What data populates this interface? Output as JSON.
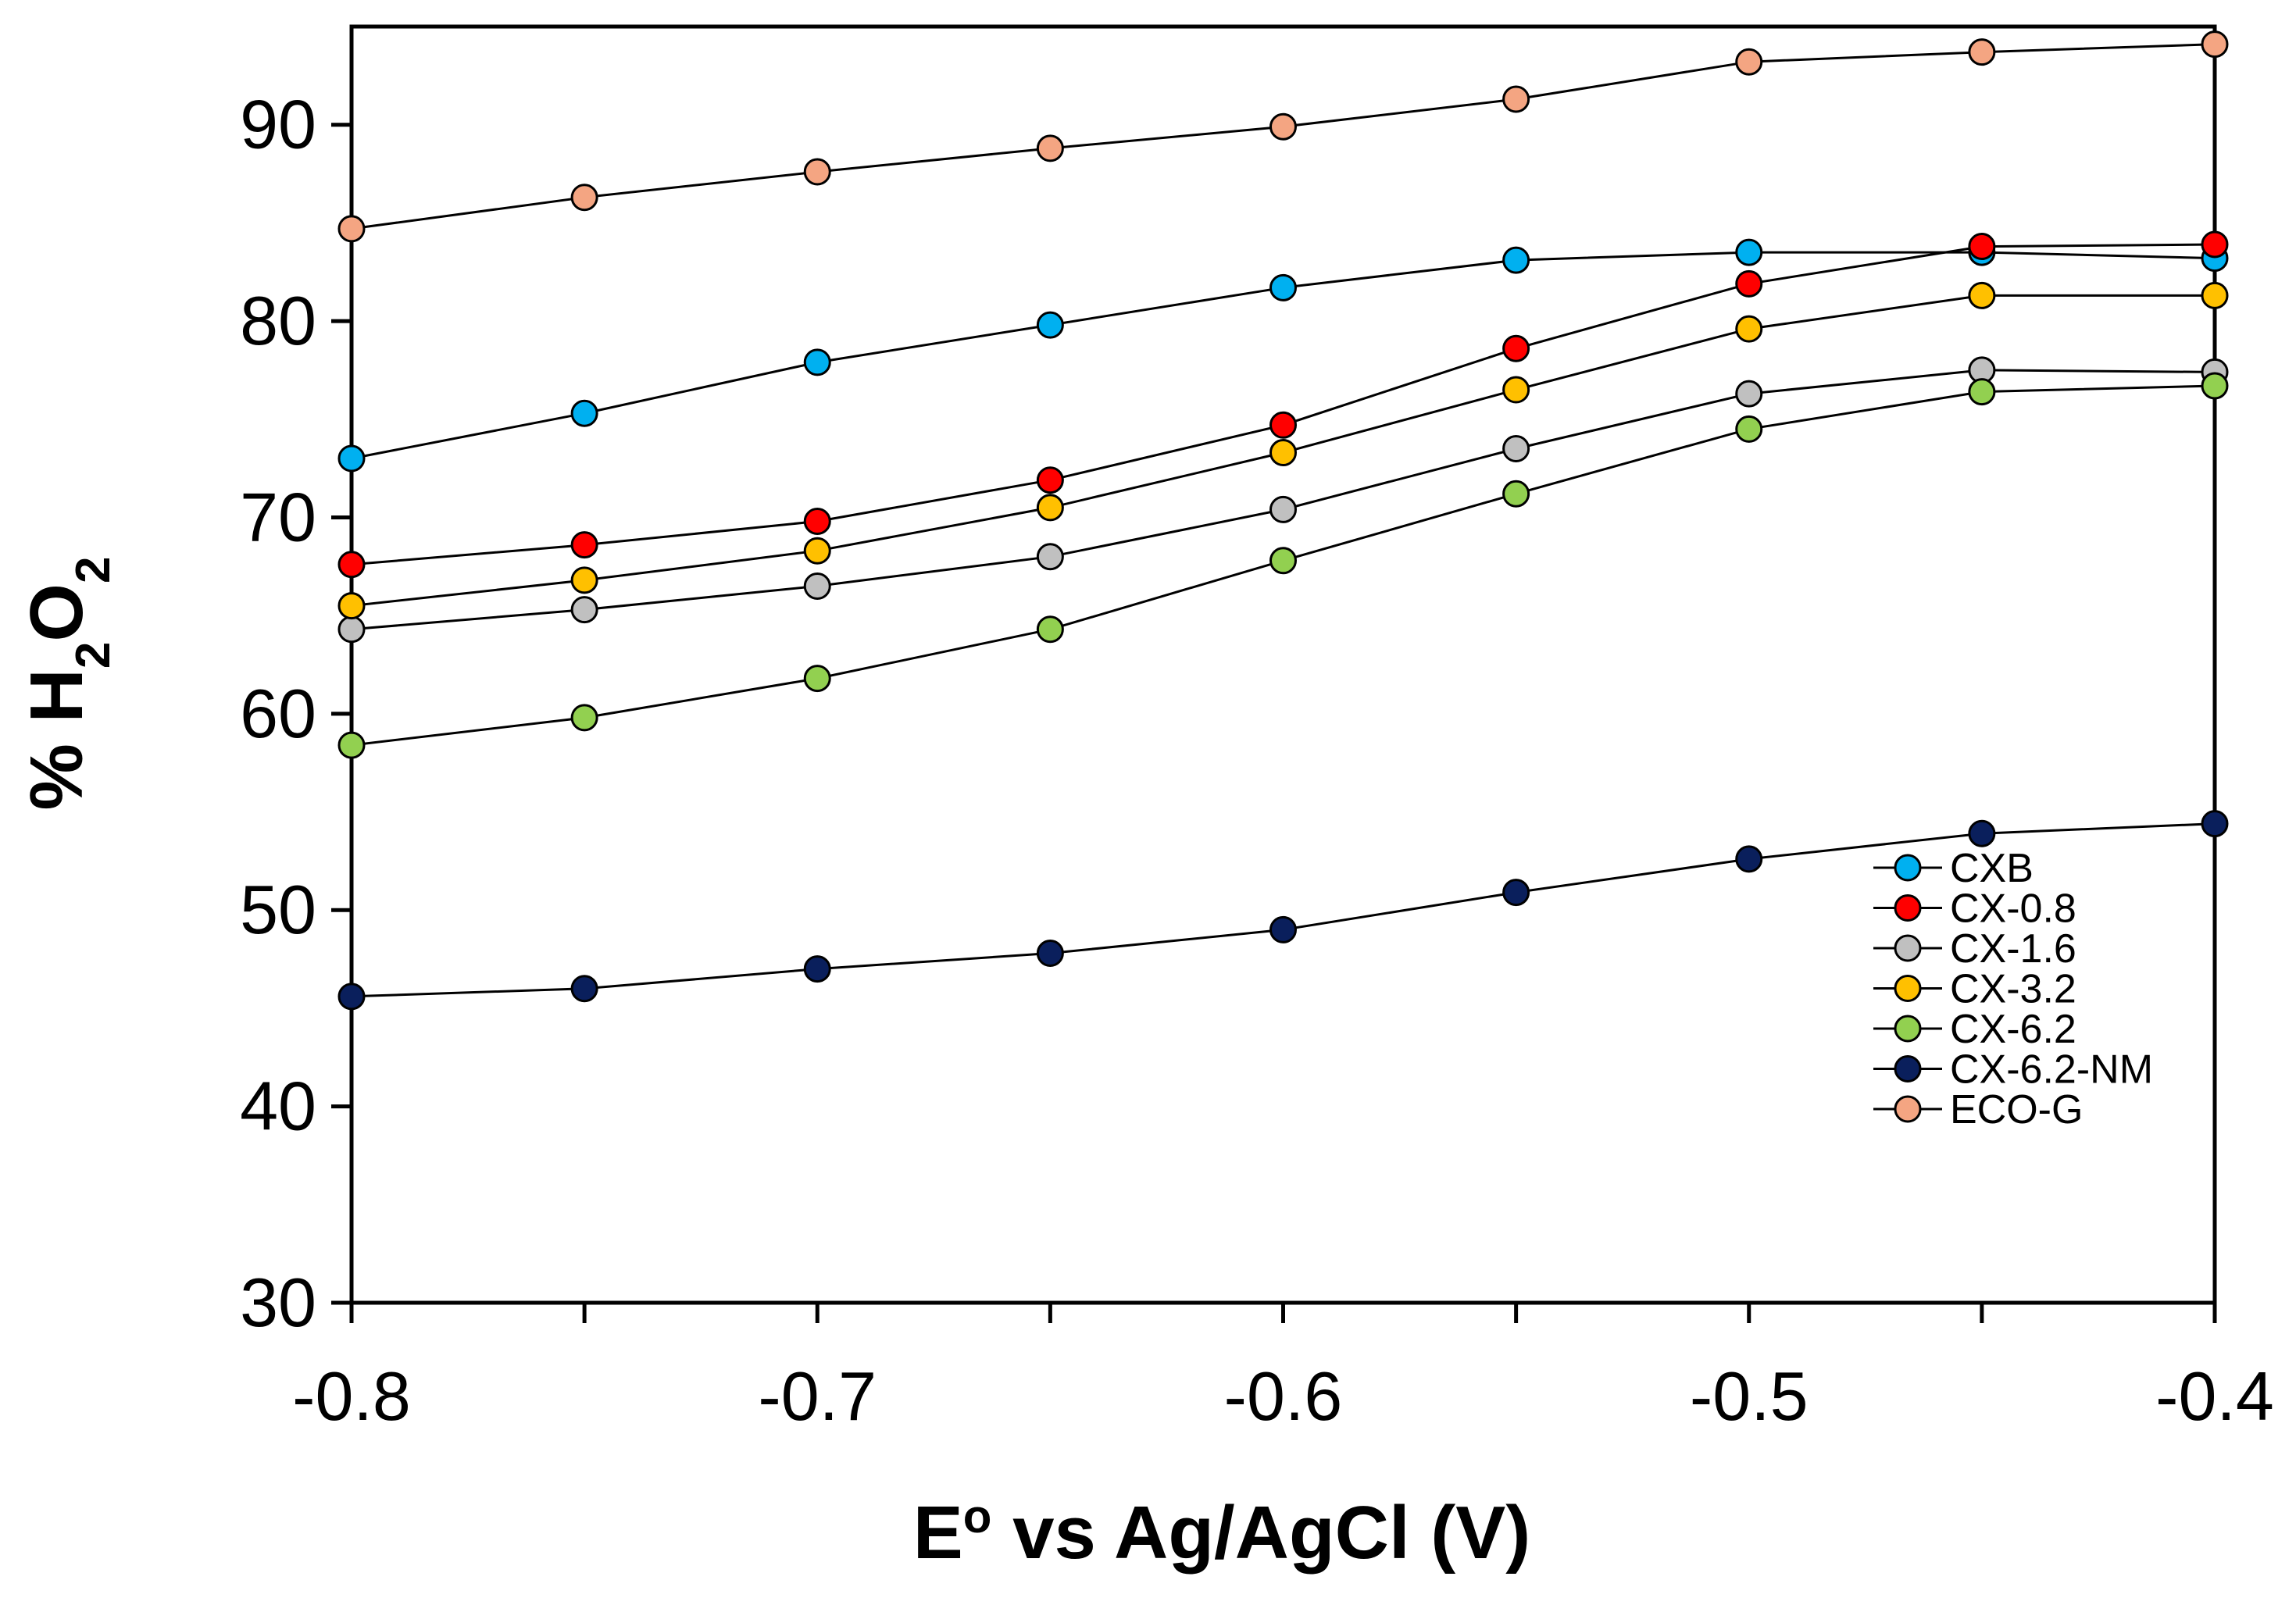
{
  "chart_data": {
    "type": "line",
    "title": "",
    "xlabel": {
      "main": "E",
      "superscript": "o",
      "rest": " vs Ag/AgCl (V)"
    },
    "ylabel": {
      "prefix": "% H",
      "sub1": "2",
      "mid": "O",
      "sub2": "2"
    },
    "xlim": [
      -0.8,
      -0.4
    ],
    "ylim": [
      30,
      95
    ],
    "xticks": [
      -0.8,
      -0.7,
      -0.6,
      -0.5,
      -0.4
    ],
    "xtick_labels": [
      "-0.8",
      "-0.7",
      "-0.6",
      "-0.5",
      "-0.4"
    ],
    "yticks": [
      30,
      40,
      50,
      60,
      70,
      80,
      90
    ],
    "ytick_labels": [
      "30",
      "40",
      "50",
      "60",
      "70",
      "80",
      "90"
    ],
    "grid": false,
    "legend_position": "bottom-right",
    "x": [
      -0.8,
      -0.75,
      -0.7,
      -0.65,
      -0.6,
      -0.55,
      -0.5,
      -0.45,
      -0.4
    ],
    "series": [
      {
        "name": "CXB",
        "color": "#00B0F0",
        "values": [
          73.0,
          75.3,
          77.9,
          79.8,
          81.7,
          83.1,
          83.5,
          83.5,
          83.2
        ]
      },
      {
        "name": "CX-0.8",
        "color": "#FF0000",
        "values": [
          67.6,
          68.6,
          69.8,
          71.9,
          74.7,
          78.6,
          81.9,
          83.8,
          83.9
        ]
      },
      {
        "name": "CX-1.6",
        "color": "#C0C0C0",
        "values": [
          64.3,
          65.3,
          66.5,
          68.0,
          70.4,
          73.5,
          76.3,
          77.5,
          77.4
        ]
      },
      {
        "name": "CX-3.2",
        "color": "#FFC000",
        "values": [
          65.5,
          66.8,
          68.3,
          70.5,
          73.3,
          76.5,
          79.6,
          81.3,
          81.3
        ]
      },
      {
        "name": "CX-6.2",
        "color": "#92D050",
        "values": [
          58.4,
          59.8,
          61.8,
          64.3,
          67.8,
          71.2,
          74.5,
          76.4,
          76.7
        ]
      },
      {
        "name": "CX-6.2-NM",
        "color": "#0A1F5C",
        "values": [
          45.6,
          46.0,
          47.0,
          47.8,
          49.0,
          50.9,
          52.6,
          53.9,
          54.4
        ]
      },
      {
        "name": "ECO-G",
        "color": "#F4A582",
        "values": [
          84.7,
          86.3,
          87.6,
          88.8,
          89.9,
          91.3,
          93.2,
          93.7,
          94.1
        ]
      }
    ]
  }
}
